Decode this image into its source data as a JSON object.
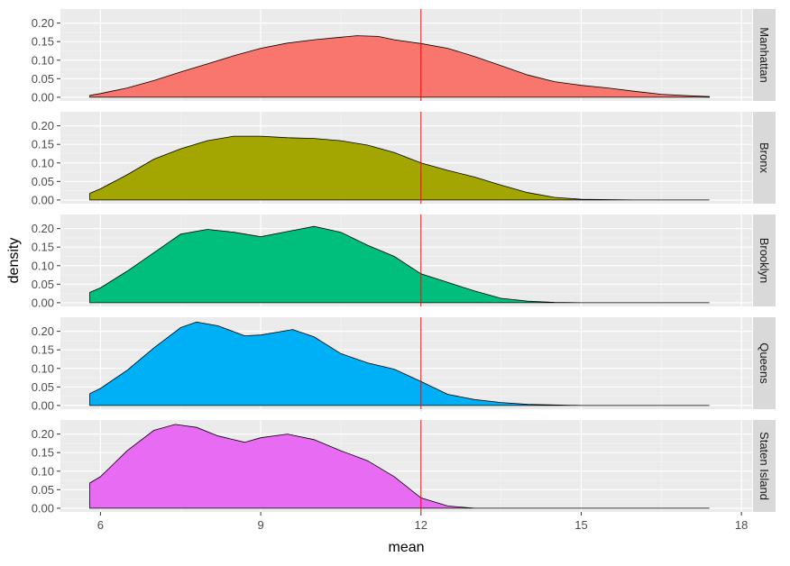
{
  "chart_data": {
    "type": "area",
    "subtype": "faceted-density",
    "xlabel": "mean",
    "ylabel": "density",
    "xlim": [
      5.25,
      18.2
    ],
    "ylim": [
      -0.01,
      0.238
    ],
    "x_ticks": [
      6,
      9,
      12,
      15,
      18
    ],
    "y_ticks": [
      0.0,
      0.05,
      0.1,
      0.15,
      0.2
    ],
    "y_tick_labels": [
      "0.00",
      "0.05",
      "0.10",
      "0.15",
      "0.20"
    ],
    "grid": true,
    "reference_line": {
      "axis": "x",
      "value": 12,
      "color": "#FF0000"
    },
    "series": [
      {
        "name": "Manhattan",
        "color": "#F8766D",
        "points": [
          [
            5.8,
            0.005
          ],
          [
            6.0,
            0.01
          ],
          [
            6.5,
            0.025
          ],
          [
            7.0,
            0.045
          ],
          [
            7.5,
            0.068
          ],
          [
            8.0,
            0.09
          ],
          [
            8.5,
            0.112
          ],
          [
            9.0,
            0.132
          ],
          [
            9.5,
            0.146
          ],
          [
            10.0,
            0.155
          ],
          [
            10.5,
            0.162
          ],
          [
            10.8,
            0.166
          ],
          [
            11.2,
            0.164
          ],
          [
            11.5,
            0.155
          ],
          [
            12.0,
            0.145
          ],
          [
            12.5,
            0.132
          ],
          [
            13.0,
            0.11
          ],
          [
            13.5,
            0.085
          ],
          [
            14.0,
            0.06
          ],
          [
            14.5,
            0.042
          ],
          [
            15.0,
            0.032
          ],
          [
            15.5,
            0.025
          ],
          [
            16.0,
            0.016
          ],
          [
            16.5,
            0.008
          ],
          [
            17.0,
            0.004
          ],
          [
            17.4,
            0.002
          ]
        ]
      },
      {
        "name": "Bronx",
        "color": "#A3A500",
        "points": [
          [
            5.8,
            0.018
          ],
          [
            6.0,
            0.03
          ],
          [
            6.5,
            0.068
          ],
          [
            7.0,
            0.11
          ],
          [
            7.5,
            0.138
          ],
          [
            8.0,
            0.16
          ],
          [
            8.5,
            0.172
          ],
          [
            9.0,
            0.172
          ],
          [
            9.5,
            0.168
          ],
          [
            10.0,
            0.166
          ],
          [
            10.5,
            0.16
          ],
          [
            11.0,
            0.148
          ],
          [
            11.5,
            0.128
          ],
          [
            12.0,
            0.1
          ],
          [
            12.5,
            0.08
          ],
          [
            13.0,
            0.062
          ],
          [
            13.5,
            0.04
          ],
          [
            14.0,
            0.02
          ],
          [
            14.5,
            0.007
          ],
          [
            15.0,
            0.002
          ],
          [
            16.0,
            0.0
          ],
          [
            17.4,
            0.0
          ]
        ]
      },
      {
        "name": "Brooklyn",
        "color": "#00BF7D",
        "points": [
          [
            5.8,
            0.028
          ],
          [
            6.0,
            0.04
          ],
          [
            6.5,
            0.085
          ],
          [
            7.0,
            0.135
          ],
          [
            7.5,
            0.185
          ],
          [
            8.0,
            0.198
          ],
          [
            8.5,
            0.19
          ],
          [
            9.0,
            0.178
          ],
          [
            9.5,
            0.192
          ],
          [
            10.0,
            0.206
          ],
          [
            10.5,
            0.19
          ],
          [
            11.0,
            0.155
          ],
          [
            11.5,
            0.125
          ],
          [
            12.0,
            0.078
          ],
          [
            12.5,
            0.055
          ],
          [
            13.0,
            0.032
          ],
          [
            13.5,
            0.012
          ],
          [
            14.0,
            0.004
          ],
          [
            14.5,
            0.001
          ],
          [
            15.0,
            0.0
          ],
          [
            17.4,
            0.0
          ]
        ]
      },
      {
        "name": "Queens",
        "color": "#00B0F6",
        "points": [
          [
            5.8,
            0.032
          ],
          [
            6.0,
            0.046
          ],
          [
            6.5,
            0.095
          ],
          [
            7.0,
            0.155
          ],
          [
            7.5,
            0.21
          ],
          [
            7.8,
            0.225
          ],
          [
            8.2,
            0.215
          ],
          [
            8.7,
            0.188
          ],
          [
            9.0,
            0.19
          ],
          [
            9.6,
            0.205
          ],
          [
            10.0,
            0.185
          ],
          [
            10.5,
            0.14
          ],
          [
            11.0,
            0.115
          ],
          [
            11.5,
            0.098
          ],
          [
            12.0,
            0.065
          ],
          [
            12.5,
            0.03
          ],
          [
            13.0,
            0.016
          ],
          [
            13.5,
            0.008
          ],
          [
            14.0,
            0.003
          ],
          [
            15.0,
            0.0
          ],
          [
            17.4,
            0.0
          ]
        ]
      },
      {
        "name": "Staten Island",
        "color": "#E76BF3",
        "points": [
          [
            5.8,
            0.068
          ],
          [
            6.0,
            0.085
          ],
          [
            6.5,
            0.155
          ],
          [
            7.0,
            0.21
          ],
          [
            7.4,
            0.226
          ],
          [
            7.8,
            0.218
          ],
          [
            8.2,
            0.195
          ],
          [
            8.7,
            0.178
          ],
          [
            9.0,
            0.19
          ],
          [
            9.5,
            0.2
          ],
          [
            10.0,
            0.185
          ],
          [
            10.5,
            0.155
          ],
          [
            11.0,
            0.128
          ],
          [
            11.5,
            0.085
          ],
          [
            12.0,
            0.028
          ],
          [
            12.5,
            0.006
          ],
          [
            13.0,
            0.0
          ],
          [
            17.4,
            0.0
          ]
        ]
      }
    ]
  }
}
